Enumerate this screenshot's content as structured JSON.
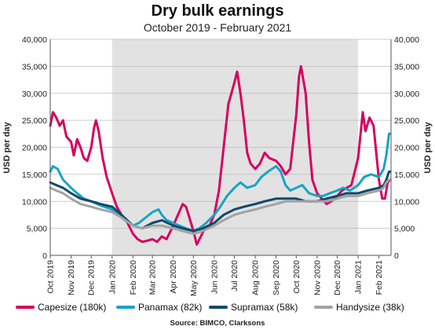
{
  "chart_data": {
    "type": "line",
    "title": "Dry bulk earnings",
    "subtitle": "October 2019 - February 2021",
    "ylabel_left": "USD per day",
    "ylabel_right": "USD per day",
    "ylim": [
      0,
      40000
    ],
    "yticks": [
      "0",
      "5,000",
      "10,000",
      "15,000",
      "20,000",
      "25,000",
      "30,000",
      "35,000",
      "40,000"
    ],
    "x_tick_labels": [
      "Oct 2019",
      "Nov 2019",
      "Dec 2019",
      "Jan 2020",
      "Feb 2020",
      "Mar 2020",
      "Apr 2020",
      "May 2020",
      "Jun 2020",
      "Jul 2020",
      "Aug 2020",
      "Sep 2020",
      "Oct 2020",
      "Nov 2020",
      "Dec 2020",
      "Jan 2021",
      "Feb 2021"
    ],
    "shaded_period": [
      "Jan 2020",
      "Jan 2021"
    ],
    "grid": "horizontal",
    "legend_position": "bottom",
    "source": "Source: BIMCO, Clarksons",
    "series": [
      {
        "name": "Capesize (180k)",
        "color": "#d6005f",
        "points": [
          [
            "2019-10-01",
            24000
          ],
          [
            "2019-10-05",
            26500
          ],
          [
            "2019-10-10",
            25500
          ],
          [
            "2019-10-15",
            24000
          ],
          [
            "2019-10-20",
            25000
          ],
          [
            "2019-10-25",
            22000
          ],
          [
            "2019-11-01",
            21000
          ],
          [
            "2019-11-05",
            18500
          ],
          [
            "2019-11-10",
            21500
          ],
          [
            "2019-11-15",
            20000
          ],
          [
            "2019-11-20",
            18000
          ],
          [
            "2019-11-25",
            17500
          ],
          [
            "2019-12-01",
            20000
          ],
          [
            "2019-12-05",
            23500
          ],
          [
            "2019-12-08",
            25000
          ],
          [
            "2019-12-12",
            23000
          ],
          [
            "2019-12-18",
            18000
          ],
          [
            "2019-12-24",
            14500
          ],
          [
            "2020-01-01",
            11500
          ],
          [
            "2020-01-08",
            9000
          ],
          [
            "2020-01-15",
            7500
          ],
          [
            "2020-01-22",
            6500
          ],
          [
            "2020-02-01",
            4000
          ],
          [
            "2020-02-08",
            3000
          ],
          [
            "2020-02-15",
            2500
          ],
          [
            "2020-02-22",
            2700
          ],
          [
            "2020-03-01",
            3000
          ],
          [
            "2020-03-08",
            2500
          ],
          [
            "2020-03-15",
            3500
          ],
          [
            "2020-03-22",
            3000
          ],
          [
            "2020-04-01",
            5500
          ],
          [
            "2020-04-08",
            7500
          ],
          [
            "2020-04-15",
            9500
          ],
          [
            "2020-04-20",
            9000
          ],
          [
            "2020-04-25",
            7000
          ],
          [
            "2020-05-01",
            4500
          ],
          [
            "2020-05-06",
            2000
          ],
          [
            "2020-05-12",
            3500
          ],
          [
            "2020-05-18",
            5000
          ],
          [
            "2020-05-25",
            5500
          ],
          [
            "2020-06-01",
            7500
          ],
          [
            "2020-06-08",
            12000
          ],
          [
            "2020-06-15",
            20000
          ],
          [
            "2020-06-22",
            28000
          ],
          [
            "2020-07-01",
            32000
          ],
          [
            "2020-07-05",
            34000
          ],
          [
            "2020-07-10",
            30000
          ],
          [
            "2020-07-15",
            25000
          ],
          [
            "2020-07-20",
            19000
          ],
          [
            "2020-07-25",
            17000
          ],
          [
            "2020-08-01",
            16000
          ],
          [
            "2020-08-08",
            17000
          ],
          [
            "2020-08-15",
            19000
          ],
          [
            "2020-08-22",
            18000
          ],
          [
            "2020-09-01",
            17500
          ],
          [
            "2020-09-08",
            16500
          ],
          [
            "2020-09-15",
            15000
          ],
          [
            "2020-09-22",
            16000
          ],
          [
            "2020-10-01",
            26000
          ],
          [
            "2020-10-05",
            33000
          ],
          [
            "2020-10-08",
            35000
          ],
          [
            "2020-10-15",
            30000
          ],
          [
            "2020-10-20",
            21000
          ],
          [
            "2020-10-25",
            14000
          ],
          [
            "2020-11-01",
            11500
          ],
          [
            "2020-11-08",
            10500
          ],
          [
            "2020-11-15",
            9500
          ],
          [
            "2020-11-22",
            10000
          ],
          [
            "2020-12-01",
            11000
          ],
          [
            "2020-12-08",
            12000
          ],
          [
            "2020-12-15",
            12500
          ],
          [
            "2020-12-22",
            13000
          ],
          [
            "2021-01-01",
            18000
          ],
          [
            "2021-01-08",
            26500
          ],
          [
            "2021-01-12",
            23000
          ],
          [
            "2021-01-18",
            25500
          ],
          [
            "2021-01-24",
            24000
          ],
          [
            "2021-02-01",
            14000
          ],
          [
            "2021-02-06",
            10500
          ],
          [
            "2021-02-10",
            10500
          ],
          [
            "2021-02-14",
            13500
          ],
          [
            "2021-02-18",
            14000
          ]
        ]
      },
      {
        "name": "Panamax (82k)",
        "color": "#17a3c4",
        "points": [
          [
            "2019-10-01",
            15500
          ],
          [
            "2019-10-05",
            16500
          ],
          [
            "2019-10-12",
            16000
          ],
          [
            "2019-10-20",
            14000
          ],
          [
            "2019-11-01",
            12500
          ],
          [
            "2019-11-10",
            11500
          ],
          [
            "2019-11-20",
            10500
          ],
          [
            "2019-12-01",
            10000
          ],
          [
            "2019-12-10",
            9500
          ],
          [
            "2019-12-20",
            9000
          ],
          [
            "2020-01-01",
            8500
          ],
          [
            "2020-01-10",
            7500
          ],
          [
            "2020-01-20",
            6500
          ],
          [
            "2020-02-01",
            5500
          ],
          [
            "2020-02-10",
            6000
          ],
          [
            "2020-02-20",
            7000
          ],
          [
            "2020-03-01",
            8000
          ],
          [
            "2020-03-10",
            8500
          ],
          [
            "2020-03-15",
            7500
          ],
          [
            "2020-03-22",
            6500
          ],
          [
            "2020-04-01",
            6000
          ],
          [
            "2020-04-10",
            5500
          ],
          [
            "2020-04-20",
            5000
          ],
          [
            "2020-05-01",
            4500
          ],
          [
            "2020-05-10",
            5000
          ],
          [
            "2020-05-20",
            6000
          ],
          [
            "2020-06-01",
            7500
          ],
          [
            "2020-06-10",
            9000
          ],
          [
            "2020-06-20",
            11000
          ],
          [
            "2020-07-01",
            12500
          ],
          [
            "2020-07-10",
            13500
          ],
          [
            "2020-07-20",
            12500
          ],
          [
            "2020-08-01",
            13000
          ],
          [
            "2020-08-10",
            14500
          ],
          [
            "2020-08-20",
            15500
          ],
          [
            "2020-09-01",
            16500
          ],
          [
            "2020-09-08",
            15500
          ],
          [
            "2020-09-15",
            13000
          ],
          [
            "2020-09-22",
            12000
          ],
          [
            "2020-10-01",
            12500
          ],
          [
            "2020-10-10",
            13000
          ],
          [
            "2020-10-20",
            11500
          ],
          [
            "2020-11-01",
            11000
          ],
          [
            "2020-11-10",
            11000
          ],
          [
            "2020-11-20",
            11500
          ],
          [
            "2020-12-01",
            12000
          ],
          [
            "2020-12-10",
            12500
          ],
          [
            "2020-12-20",
            12000
          ],
          [
            "2021-01-01",
            13000
          ],
          [
            "2021-01-10",
            14500
          ],
          [
            "2021-01-20",
            15000
          ],
          [
            "2021-02-01",
            14500
          ],
          [
            "2021-02-08",
            16000
          ],
          [
            "2021-02-12",
            18500
          ],
          [
            "2021-02-16",
            22500
          ],
          [
            "2021-02-18",
            22500
          ]
        ]
      },
      {
        "name": "Supramax (58k)",
        "color": "#0d4a6b",
        "points": [
          [
            "2019-10-01",
            13500
          ],
          [
            "2019-10-10",
            13000
          ],
          [
            "2019-10-20",
            12500
          ],
          [
            "2019-11-01",
            11500
          ],
          [
            "2019-11-15",
            10500
          ],
          [
            "2019-12-01",
            10000
          ],
          [
            "2019-12-15",
            9500
          ],
          [
            "2020-01-01",
            9000
          ],
          [
            "2020-01-15",
            7500
          ],
          [
            "2020-02-01",
            5500
          ],
          [
            "2020-02-15",
            5000
          ],
          [
            "2020-03-01",
            6000
          ],
          [
            "2020-03-15",
            6500
          ],
          [
            "2020-04-01",
            5500
          ],
          [
            "2020-04-15",
            5000
          ],
          [
            "2020-05-01",
            4500
          ],
          [
            "2020-05-15",
            5000
          ],
          [
            "2020-06-01",
            6000
          ],
          [
            "2020-06-15",
            7500
          ],
          [
            "2020-07-01",
            8500
          ],
          [
            "2020-07-15",
            9000
          ],
          [
            "2020-08-01",
            9500
          ],
          [
            "2020-08-15",
            10000
          ],
          [
            "2020-09-01",
            10500
          ],
          [
            "2020-09-15",
            10500
          ],
          [
            "2020-10-01",
            10500
          ],
          [
            "2020-10-15",
            10000
          ],
          [
            "2020-11-01",
            10000
          ],
          [
            "2020-11-15",
            10500
          ],
          [
            "2020-12-01",
            11000
          ],
          [
            "2020-12-15",
            11500
          ],
          [
            "2021-01-01",
            11500
          ],
          [
            "2021-01-15",
            12000
          ],
          [
            "2021-02-01",
            12500
          ],
          [
            "2021-02-08",
            13000
          ],
          [
            "2021-02-12",
            14000
          ],
          [
            "2021-02-16",
            15500
          ],
          [
            "2021-02-18",
            15500
          ]
        ]
      },
      {
        "name": "Handysize (38k)",
        "color": "#a3a3a3",
        "points": [
          [
            "2019-10-01",
            12500
          ],
          [
            "2019-10-10",
            12000
          ],
          [
            "2019-10-20",
            11500
          ],
          [
            "2019-11-01",
            10500
          ],
          [
            "2019-11-15",
            9500
          ],
          [
            "2019-12-01",
            9000
          ],
          [
            "2019-12-15",
            8500
          ],
          [
            "2020-01-01",
            8000
          ],
          [
            "2020-01-15",
            7000
          ],
          [
            "2020-02-01",
            5500
          ],
          [
            "2020-02-15",
            5000
          ],
          [
            "2020-03-01",
            5500
          ],
          [
            "2020-03-15",
            5500
          ],
          [
            "2020-04-01",
            5000
          ],
          [
            "2020-04-15",
            4500
          ],
          [
            "2020-05-01",
            4000
          ],
          [
            "2020-05-15",
            4500
          ],
          [
            "2020-06-01",
            5500
          ],
          [
            "2020-06-15",
            6500
          ],
          [
            "2020-07-01",
            7500
          ],
          [
            "2020-07-15",
            8000
          ],
          [
            "2020-08-01",
            8500
          ],
          [
            "2020-08-15",
            9000
          ],
          [
            "2020-09-01",
            9500
          ],
          [
            "2020-09-15",
            10000
          ],
          [
            "2020-10-01",
            10000
          ],
          [
            "2020-10-15",
            10000
          ],
          [
            "2020-11-01",
            10000
          ],
          [
            "2020-11-15",
            10000
          ],
          [
            "2020-12-01",
            10500
          ],
          [
            "2020-12-15",
            11000
          ],
          [
            "2021-01-01",
            11000
          ],
          [
            "2021-01-15",
            11500
          ],
          [
            "2021-02-01",
            12000
          ],
          [
            "2021-02-08",
            12500
          ],
          [
            "2021-02-12",
            13500
          ],
          [
            "2021-02-16",
            14000
          ],
          [
            "2021-02-18",
            14000
          ]
        ]
      }
    ]
  }
}
